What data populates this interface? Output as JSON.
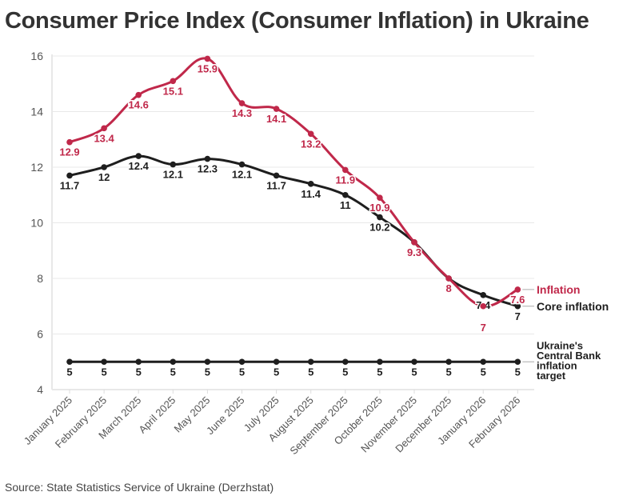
{
  "title": "Consumer Price Index (Consumer Inflation) in Ukraine",
  "source": "Source: State Statistics Service of Ukraine (Derzhstat)",
  "colors": {
    "inflation": "#c0284a",
    "core": "#1e1e1e",
    "target": "#1e1e1e",
    "grid": "#e8e8e8",
    "axis_text": "#555555"
  },
  "chart_data": {
    "type": "line",
    "title": "Consumer Price Index (Consumer Inflation) in Ukraine",
    "xlabel": "",
    "ylabel": "",
    "ylim": [
      4,
      16
    ],
    "yticks": [
      4,
      6,
      8,
      10,
      12,
      14,
      16
    ],
    "grid": true,
    "legend_placement": "right (inline end labels)",
    "categories": [
      "January 2025",
      "February 2025",
      "March 2025",
      "April 2025",
      "May 2025",
      "June 2025",
      "July 2025",
      "August 2025",
      "September 2025",
      "October 2025",
      "November 2025",
      "December 2025",
      "January 2026",
      "February 2026"
    ],
    "series": [
      {
        "name": "Inflation",
        "color": "#c0284a",
        "values": [
          12.9,
          13.4,
          14.6,
          15.1,
          15.9,
          14.3,
          14.1,
          13.2,
          11.9,
          10.9,
          9.3,
          8,
          7,
          7.6
        ]
      },
      {
        "name": "Core inflation",
        "color": "#1e1e1e",
        "values": [
          11.7,
          12,
          12.4,
          12.1,
          12.3,
          12.1,
          11.7,
          11.4,
          11,
          10.2,
          9.3,
          8,
          7.4,
          7
        ]
      },
      {
        "name": "Ukraine's Central Bank inflation target",
        "legend_lines": [
          "Ukraine's",
          "Central Bank",
          "inflation",
          "target"
        ],
        "color": "#1e1e1e",
        "values": [
          5,
          5,
          5,
          5,
          5,
          5,
          5,
          5,
          5,
          5,
          5,
          5,
          5,
          5
        ]
      }
    ]
  }
}
